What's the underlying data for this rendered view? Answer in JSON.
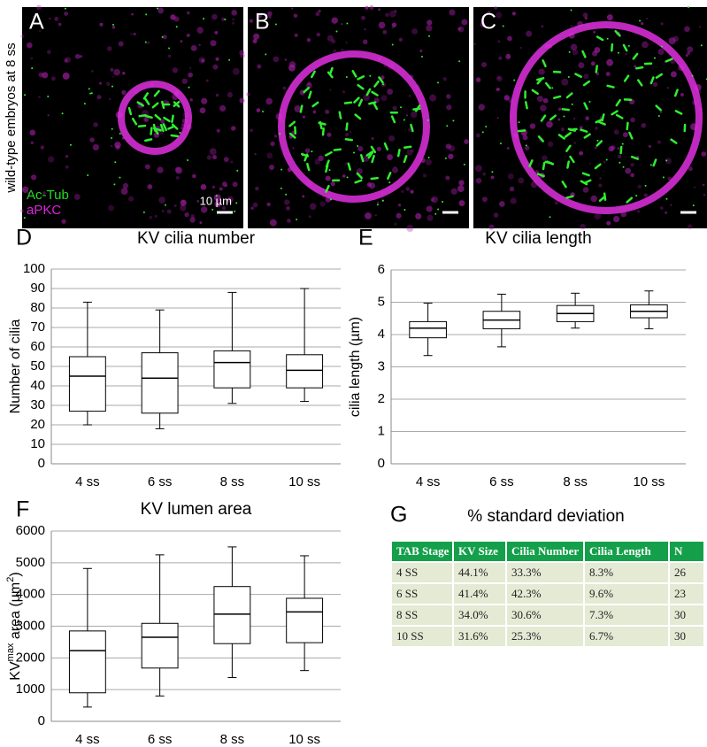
{
  "panels": [
    {
      "label": "A"
    },
    {
      "label": "B"
    },
    {
      "label": "C"
    }
  ],
  "side_label": "wild-type embryos at 8 ss",
  "stain_legend": [
    {
      "name": "Ac-Tub",
      "color": "#22dd22"
    },
    {
      "name": "aPKC",
      "color": "#dd22dd"
    }
  ],
  "scale_bar": "10 µm",
  "chart_data": [
    {
      "type": "box",
      "panel_label": "D",
      "title": "KV cilia number",
      "ylabel": [
        "Number of cilia"
      ],
      "ylabel_superscript": [],
      "categories": [
        "4 ss",
        "6 ss",
        "8 ss",
        "10 ss"
      ],
      "min": [
        20,
        18,
        31,
        32
      ],
      "q1": [
        27,
        26,
        39,
        39
      ],
      "median": [
        45,
        44,
        52,
        48
      ],
      "q3": [
        55,
        57,
        58,
        56
      ],
      "max": [
        83,
        79,
        88,
        90
      ],
      "ylim": [
        0,
        100
      ],
      "yticks": [
        0,
        10,
        20,
        30,
        40,
        50,
        60,
        70,
        80,
        90,
        100
      ],
      "grid": true
    },
    {
      "type": "box",
      "panel_label": "E",
      "title": "KV cilia length",
      "ylabel": [
        "cilia length (µm)"
      ],
      "ylabel_superscript": [],
      "categories": [
        "4 ss",
        "6 ss",
        "8 ss",
        "10 ss"
      ],
      "min": [
        3.35,
        3.62,
        4.2,
        4.18
      ],
      "q1": [
        3.9,
        4.18,
        4.4,
        4.52
      ],
      "median": [
        4.2,
        4.45,
        4.65,
        4.72
      ],
      "q3": [
        4.4,
        4.72,
        4.9,
        4.92
      ],
      "max": [
        4.97,
        5.25,
        5.28,
        5.35
      ],
      "ylim": [
        0,
        6
      ],
      "yticks": [
        0,
        1,
        2,
        3,
        4,
        5,
        6
      ],
      "grid": true
    },
    {
      "type": "box",
      "panel_label": "F",
      "title": "KV lumen area",
      "ylabel": [
        "KV",
        "max",
        " area (µm",
        "2",
        ")"
      ],
      "ylabel_superscript": [
        1,
        3
      ],
      "categories": [
        "4 ss",
        "6 ss",
        "8 ss",
        "10 ss"
      ],
      "min": [
        450,
        800,
        1380,
        1600
      ],
      "q1": [
        900,
        1680,
        2450,
        2480
      ],
      "median": [
        2230,
        2650,
        3380,
        3450
      ],
      "q3": [
        2850,
        3090,
        4250,
        3880
      ],
      "max": [
        4820,
        5250,
        5500,
        5220
      ],
      "ylim": [
        0,
        6000
      ],
      "yticks": [
        0,
        1000,
        2000,
        3000,
        4000,
        5000,
        6000
      ],
      "grid": true
    }
  ],
  "table": {
    "panel_label": "G",
    "title": "% standard deviation",
    "header": [
      "TAB Stage",
      "KV Size",
      "Cilia Number",
      "Cilia Length",
      "N"
    ],
    "rows": [
      [
        "4 SS",
        "44.1%",
        "33.3%",
        "8.3%",
        "26"
      ],
      [
        "6 SS",
        "41.4%",
        "42.3%",
        "9.6%",
        "23"
      ],
      [
        "8 SS",
        "34.0%",
        "30.6%",
        "7.3%",
        "30"
      ],
      [
        "10 SS",
        "31.6%",
        "25.3%",
        "6.7%",
        "30"
      ]
    ]
  }
}
